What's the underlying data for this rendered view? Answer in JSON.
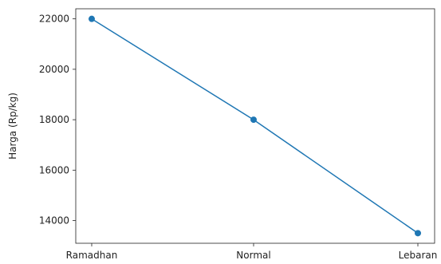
{
  "chart_data": {
    "type": "line",
    "title": "",
    "xlabel": "",
    "ylabel": "Harga (Rp/kg)",
    "categories": [
      "Ramadhan",
      "Normal",
      "Lebaran"
    ],
    "series": [
      {
        "values": [
          22000,
          18000,
          13500
        ],
        "color": "#1f77b4",
        "marker": "circle"
      }
    ],
    "ylim": [
      13100,
      22400
    ],
    "yticks": [
      14000,
      16000,
      18000,
      20000,
      22000
    ],
    "grid": false,
    "legend": false
  }
}
